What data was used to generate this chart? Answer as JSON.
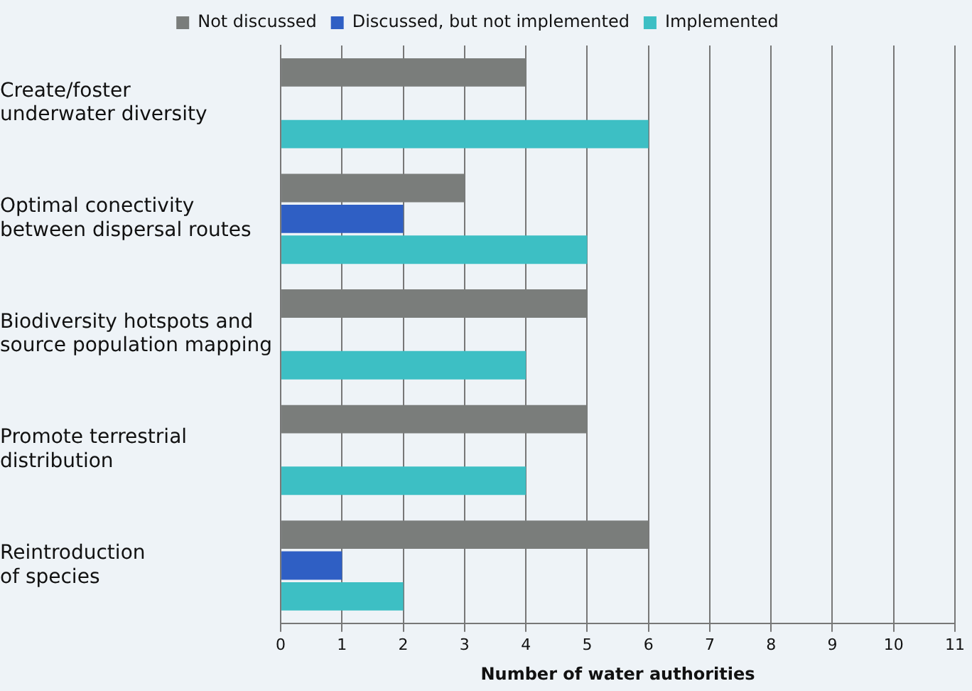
{
  "chart_data": {
    "type": "bar",
    "orientation": "horizontal",
    "xlabel": "Number of water authorities",
    "categories": [
      "Create/foster\nunderwater diversity",
      "Optimal conectivity\nbetween dispersal routes",
      "Biodiversity hotspots and\nsource population mapping",
      "Promote terrestrial\ndistribution",
      "Reintroduction\nof species"
    ],
    "series": [
      {
        "name": "Not discussed",
        "color": "#7a7d7b",
        "values": [
          4,
          3,
          5,
          5,
          6
        ]
      },
      {
        "name": "Discussed, but not implemented",
        "color": "#2f5fc4",
        "values": [
          null,
          2,
          null,
          null,
          1
        ]
      },
      {
        "name": "Implemented",
        "color": "#3dbfc4",
        "values": [
          6,
          5,
          4,
          4,
          2
        ]
      }
    ],
    "xlim": [
      0,
      11
    ],
    "xticks": [
      0,
      1,
      2,
      3,
      4,
      5,
      6,
      7,
      8,
      9,
      10,
      11
    ],
    "grid": "x",
    "legend": "top"
  }
}
